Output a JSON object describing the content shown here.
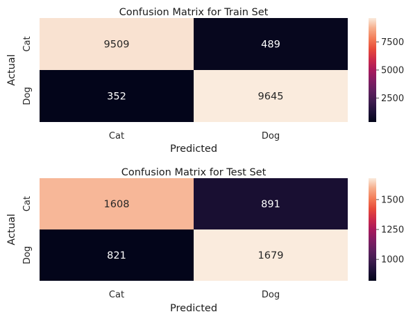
{
  "chart_data": [
    {
      "type": "heatmap",
      "title": "Confusion Matrix for Train Set",
      "xlabel": "Predicted",
      "ylabel": "Actual",
      "x_categories": [
        "Cat",
        "Dog"
      ],
      "y_categories": [
        "Cat",
        "Dog"
      ],
      "values": [
        [
          9509,
          489
        ],
        [
          352,
          9645
        ]
      ],
      "colormap": "rocket",
      "colorbar": {
        "range": [
          352,
          9645
        ],
        "ticks": [
          2500,
          5000,
          7500
        ]
      },
      "grid": false
    },
    {
      "type": "heatmap",
      "title": "Confusion Matrix for Test Set",
      "xlabel": "Predicted",
      "ylabel": "Actual",
      "x_categories": [
        "Cat",
        "Dog"
      ],
      "y_categories": [
        "Cat",
        "Dog"
      ],
      "values": [
        [
          1608,
          891
        ],
        [
          821,
          1679
        ]
      ],
      "colormap": "rocket",
      "colorbar": {
        "range": [
          821,
          1679
        ],
        "ticks": [
          1000,
          1250,
          1500
        ]
      },
      "grid": false
    }
  ]
}
